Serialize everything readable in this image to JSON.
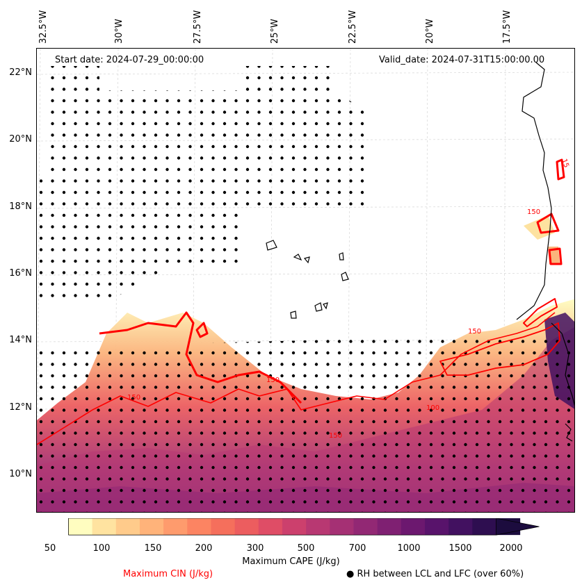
{
  "map": {
    "start_date": "Start date: 2024-07-29_00:00:00",
    "valid_date": "Valid_date: 2024-07-31T15:00:00.00",
    "longitude_labels": [
      "32.5°W",
      "30°W",
      "27.5°W",
      "25°W",
      "22.5°W",
      "20°W",
      "17.5°W"
    ],
    "latitude_labels": [
      "22°N",
      "20°N",
      "18°N",
      "16°N",
      "14°N",
      "12°N",
      "10°N"
    ],
    "contour_labels": [
      "150",
      "150",
      "15",
      "150",
      "150",
      "100",
      "150"
    ]
  },
  "colorbar": {
    "tick_labels": [
      "50",
      "100",
      "150",
      "200",
      "300",
      "500",
      "700",
      "1000",
      "1500",
      "2000"
    ],
    "title": "Maximum CAPE (J/kg)",
    "colors": [
      "#fffdc0",
      "#ffe3a0",
      "#ffcb8b",
      "#ffb37a",
      "#fe9b6d",
      "#fc8462",
      "#f56f5c",
      "#ec5d5f",
      "#df4d66",
      "#cc406d",
      "#b83872",
      "#a53074",
      "#922874",
      "#7f2072",
      "#6c186f",
      "#58136b",
      "#421160",
      "#2e0e50",
      "#1c0c3e"
    ]
  },
  "legend": {
    "cin_label": "Maximum CIN (J/kg)",
    "rh_label": "RH between LCL and LFC (over 60%)",
    "cin_color": "#ff0000"
  },
  "fields": {
    "cape_gradient": [
      "#fffdc0",
      "#fde2a0",
      "#fbb47c",
      "#f27d5e",
      "#d94b66",
      "#a33074",
      "#5a136b",
      "#1c0c3e"
    ],
    "coastline_color": "#000000"
  }
}
